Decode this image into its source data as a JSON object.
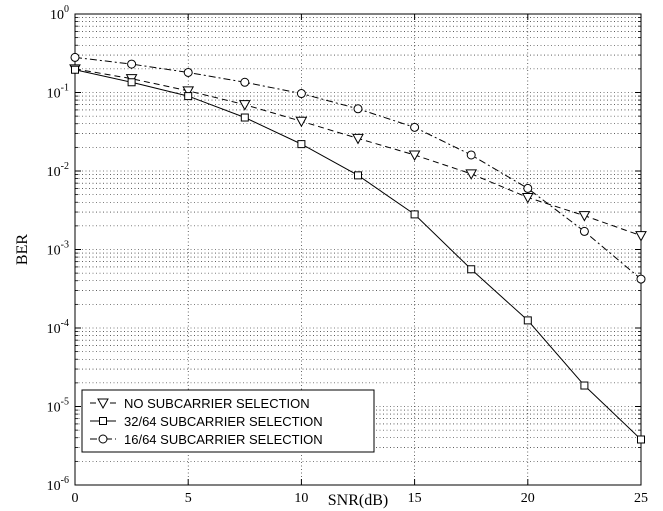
{
  "chart_data": {
    "type": "line",
    "xlabel": "SNR(dB)",
    "ylabel": "BER",
    "x_ticks": [
      "0",
      "5",
      "10",
      "15",
      "20",
      "25"
    ],
    "y_ticks": [
      {
        "base": "10",
        "exp": "-6"
      },
      {
        "base": "10",
        "exp": "-5"
      },
      {
        "base": "10",
        "exp": "-4"
      },
      {
        "base": "10",
        "exp": "-3"
      },
      {
        "base": "10",
        "exp": "-2"
      },
      {
        "base": "10",
        "exp": "-1"
      },
      {
        "base": "10",
        "exp": "0"
      }
    ],
    "xlim": [
      0,
      25
    ],
    "ylim": [
      1e-06,
      1
    ],
    "y_scale": "log",
    "grid": true,
    "legend_position": "bottom-left",
    "x": [
      0,
      2.5,
      5,
      7.5,
      10,
      12.5,
      15,
      17.5,
      20,
      22.5,
      25
    ],
    "series": [
      {
        "name": "NO SUBCARRIER SELECTION",
        "marker": "triangle-down",
        "line_style": "dashed",
        "values": [
          0.2,
          0.15,
          0.105,
          0.07,
          0.043,
          0.026,
          0.016,
          0.0092,
          0.0046,
          0.0027,
          0.0015
        ]
      },
      {
        "name": "32/64 SUBCARRIER SELECTION",
        "marker": "square",
        "line_style": "solid",
        "values": [
          0.195,
          0.135,
          0.09,
          0.048,
          0.022,
          0.0088,
          0.0028,
          0.00056,
          0.000125,
          1.85e-05,
          3.8e-06
        ]
      },
      {
        "name": "16/64 SUBCARRIER SELECTION",
        "marker": "circle",
        "line_style": "dash-dot",
        "values": [
          0.28,
          0.23,
          0.18,
          0.135,
          0.097,
          0.062,
          0.036,
          0.016,
          0.006,
          0.0017,
          0.00042
        ]
      }
    ]
  }
}
